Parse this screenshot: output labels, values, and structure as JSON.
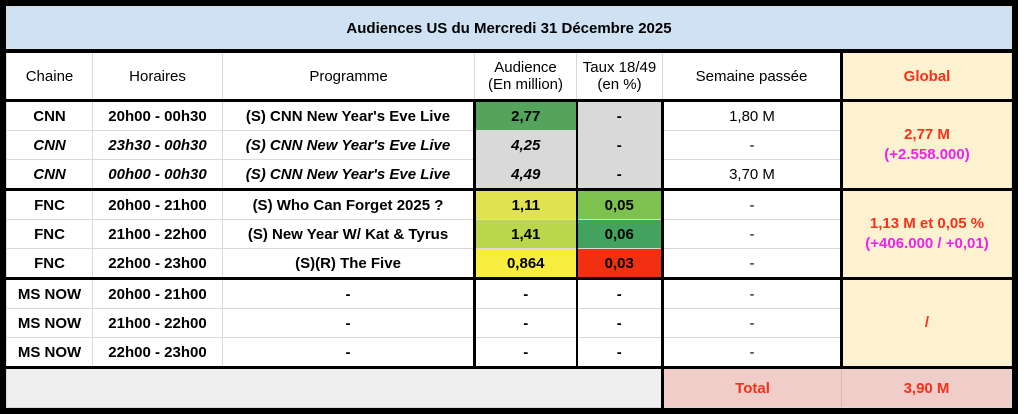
{
  "title": "Audiences US du Mercredi 31 Décembre 2025",
  "columns": {
    "chaine": "Chaine",
    "horaires": "Horaires",
    "programme": "Programme",
    "audience_l1": "Audience",
    "audience_l2": "(En million)",
    "taux_l1": "Taux 18/49",
    "taux_l2": "(en %)",
    "semaine": "Semaine passée",
    "global": "Global"
  },
  "rows": [
    {
      "chaine": "CNN",
      "horaires": "20h00 - 00h30",
      "programme": "(S) CNN New Year's Eve Live",
      "audience": "2,77",
      "taux": "-",
      "semaine": "1,80 M"
    },
    {
      "chaine": "CNN",
      "horaires": "23h30 - 00h30",
      "programme": "(S) CNN New Year's Eve Live",
      "audience": "4,25",
      "taux": "-",
      "semaine": "-"
    },
    {
      "chaine": "CNN",
      "horaires": "00h00 - 00h30",
      "programme": "(S) CNN New Year's Eve Live",
      "audience": "4,49",
      "taux": "-",
      "semaine": "3,70 M"
    },
    {
      "chaine": "FNC",
      "horaires": "20h00 - 21h00",
      "programme": "(S) Who Can Forget 2025 ?",
      "audience": "1,11",
      "taux": "0,05",
      "semaine": "-"
    },
    {
      "chaine": "FNC",
      "horaires": "21h00 - 22h00",
      "programme": "(S) New Year W/ Kat & Tyrus",
      "audience": "1,41",
      "taux": "0,06",
      "semaine": "-"
    },
    {
      "chaine": "FNC",
      "horaires": "22h00 - 23h00",
      "programme": "(S)(R) The Five",
      "audience": "0,864",
      "taux": "0,03",
      "semaine": "-"
    },
    {
      "chaine": "MS NOW",
      "horaires": "20h00 - 21h00",
      "programme": "-",
      "audience": "-",
      "taux": "-",
      "semaine": "-"
    },
    {
      "chaine": "MS NOW",
      "horaires": "21h00 - 22h00",
      "programme": "-",
      "audience": "-",
      "taux": "-",
      "semaine": "-"
    },
    {
      "chaine": "MS NOW",
      "horaires": "22h00 - 23h00",
      "programme": "-",
      "audience": "-",
      "taux": "-",
      "semaine": "-"
    }
  ],
  "globals": [
    {
      "line1": "2,77 M",
      "line2": "(+2.558.000)"
    },
    {
      "line1": "1,13 M et 0,05 %",
      "line2": "(+406.000 / +0,01)"
    },
    {
      "line1": "/",
      "line2": ""
    }
  ],
  "total": {
    "label": "Total",
    "value": "3,90 M"
  },
  "colors": {
    "title_bg": "#cfe2f3",
    "global_bg": "#fdf2cf",
    "excluded_gray": "#d9d9d9",
    "bottom_gray": "#efefef",
    "total_pink": "#f1cdca",
    "audience_green": "#55a45e",
    "audience_yellowgreen": "#e0e250",
    "audience_greenyellow": "#bad64d",
    "audience_yellow": "#f7ed3f",
    "taux_lightgreen": "#7dc24f",
    "taux_green": "#43a35e",
    "taux_red": "#f23011",
    "accent_red_text": "#fb2e16",
    "accent_magenta_text": "#f021f0"
  },
  "chart_data": {
    "type": "table",
    "title": "Audiences US du Mercredi 31 Décembre 2025",
    "columns": [
      "Chaine",
      "Horaires",
      "Programme",
      "Audience (En million)",
      "Taux 18/49 (en %)",
      "Semaine passée",
      "Global"
    ],
    "rows": [
      [
        "CNN",
        "20h00 - 00h30",
        "(S) CNN New Year's Eve Live",
        "2,77",
        "-",
        "1,80 M",
        "2,77 M (+2.558.000)"
      ],
      [
        "CNN",
        "23h30 - 00h30",
        "(S) CNN New Year's Eve Live",
        "4,25",
        "-",
        "-",
        ""
      ],
      [
        "CNN",
        "00h00 - 00h30",
        "(S) CNN New Year's Eve Live",
        "4,49",
        "-",
        "3,70 M",
        ""
      ],
      [
        "FNC",
        "20h00 - 21h00",
        "(S) Who Can Forget 2025 ?",
        "1,11",
        "0,05",
        "-",
        "1,13 M et 0,05 % (+406.000 / +0,01)"
      ],
      [
        "FNC",
        "21h00 - 22h00",
        "(S) New Year W/ Kat & Tyrus",
        "1,41",
        "0,06",
        "-",
        ""
      ],
      [
        "FNC",
        "22h00 - 23h00",
        "(S)(R) The Five",
        "0,864",
        "0,03",
        "-",
        ""
      ],
      [
        "MS NOW",
        "20h00 - 21h00",
        "-",
        "-",
        "-",
        "-",
        "/"
      ],
      [
        "MS NOW",
        "21h00 - 22h00",
        "-",
        "-",
        "-",
        "-",
        ""
      ],
      [
        "MS NOW",
        "22h00 - 23h00",
        "-",
        "-",
        "-",
        "-",
        ""
      ]
    ],
    "total": {
      "label": "Total",
      "value": "3,90 M"
    }
  }
}
